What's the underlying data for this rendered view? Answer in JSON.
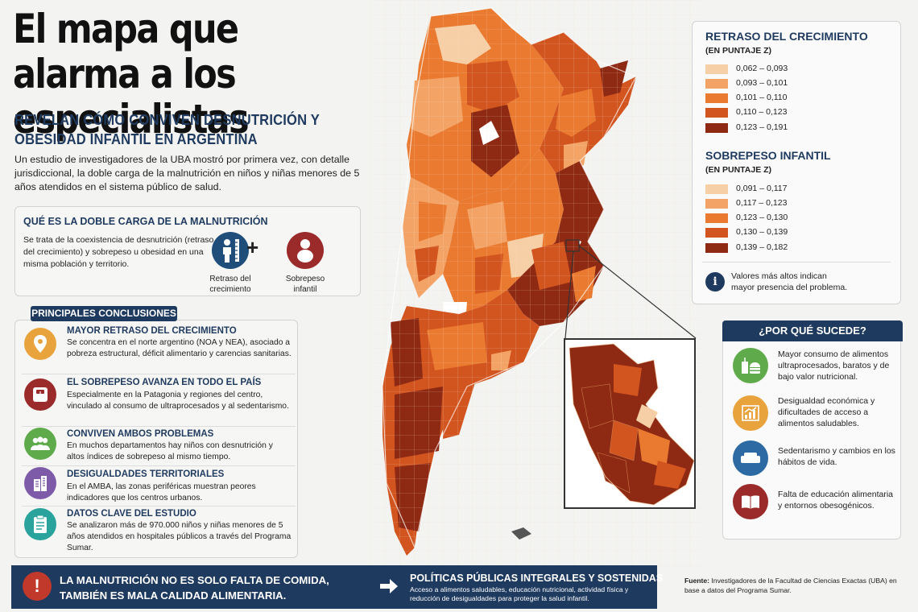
{
  "header": {
    "title": "El mapa que alarma a los especialistas",
    "subtitle": "REVELAN CÓMO CONVIVEN DESNUTRICIÓN Y OBESIDAD INFANTIL EN ARGENTINA",
    "intro": "Un estudio de investigadores de la UBA mostró por primera vez, con detalle jurisdiccional, la doble carga de la malnutrición en niños y niñas menores de 5 años atendidos en el sistema público de salud."
  },
  "doble_carga": {
    "heading": "QUÉ ES LA DOBLE CARGA DE LA MALNUTRICIÓN",
    "text": "Se trata de la coexistencia de desnutrición (retraso del crecimiento) y sobrepeso u obesidad en una misma población y territorio.",
    "icon1_label": "Retraso del crecimiento",
    "icon2_label": "Sobrepeso infantil",
    "plus": "+"
  },
  "conclusiones": {
    "heading": "PRINCIPALES CONCLUSIONES",
    "items": [
      {
        "title": "MAYOR RETRASO DEL CRECIMIENTO",
        "text": "Se concentra en el norte argentino (NOA y NEA), asociado a pobreza estructural, déficit alimentario y carencias sanitarias.",
        "icon": "location-pin-icon",
        "color": "#e8a33d"
      },
      {
        "title": "EL SOBREPESO AVANZA EN TODO EL PAÍS",
        "text": "Especialmente en la Patagonia y regiones del centro, vinculado al consumo de ultraprocesados y al sedentarismo.",
        "icon": "scale-icon",
        "color": "#9b2a2a"
      },
      {
        "title": "CONVIVEN AMBOS PROBLEMAS",
        "text": "En muchos departamentos hay niños con desnutrición y altos índices de sobrepeso al mismo tiempo.",
        "icon": "people-icon",
        "color": "#5faa4b"
      },
      {
        "title": "DESIGUALDADES TERRITORIALES",
        "text": "En el AMBA, las zonas periféricas muestran peores indicadores que los centros urbanos.",
        "icon": "buildings-icon",
        "color": "#7e5ba8"
      },
      {
        "title": "DATOS CLAVE DEL ESTUDIO",
        "text": "Se analizaron más de 970.000 niños y niñas menores de 5 años atendidos en hospitales públicos a través del Programa Sumar.",
        "icon": "clipboard-icon",
        "color": "#2aa39c"
      }
    ]
  },
  "legend": {
    "retraso": {
      "title": "RETRASO DEL CRECIMIENTO",
      "sub": "(EN PUNTAJE Z)",
      "ranges": [
        "0,062 – 0,093",
        "0,093 – 0,101",
        "0,101 – 0,110",
        "0,110 – 0,123",
        "0,123 – 0,191"
      ],
      "colors": [
        "#f6cfa6",
        "#f3a366",
        "#ea7a30",
        "#d2541f",
        "#8e2a14"
      ]
    },
    "sobrepeso": {
      "title": "SOBREPESO INFANTIL",
      "sub": "(EN PUNTAJE Z)",
      "ranges": [
        "0,091 – 0,117",
        "0,117 – 0,123",
        "0,123 – 0,130",
        "0,130 – 0,139",
        "0,139 – 0,182"
      ],
      "colors": [
        "#f6cfa6",
        "#f3a366",
        "#ea7a30",
        "#d2541f",
        "#8e2a14"
      ]
    },
    "note": "Valores más altos indican mayor presencia del problema.",
    "info": "i"
  },
  "por_que": {
    "heading": "¿POR QUÉ SUCEDE?",
    "items": [
      {
        "text": "Mayor consumo de alimentos ultraprocesados, baratos y de bajo valor nutricional.",
        "icon": "fast-food-icon",
        "color": "#5faa4b"
      },
      {
        "text": "Desigualdad económica y dificultades de acceso a alimentos saludables.",
        "icon": "chart-up-icon",
        "color": "#e8a33d"
      },
      {
        "text": "Sedentarismo y cambios en los hábitos de vida.",
        "icon": "sofa-icon",
        "color": "#2d6aa3"
      },
      {
        "text": "Falta de educación alimentaria y entornos obesogénicos.",
        "icon": "book-icon",
        "color": "#9b2a2a"
      }
    ]
  },
  "banner": {
    "warn": "!",
    "main": "LA MALNUTRICIÓN NO ES SOLO FALTA DE COMIDA, TAMBIÉN ES MALA CALIDAD ALIMENTARIA.",
    "policy_title": "POLÍTICAS PÚBLICAS INTEGRALES Y SOSTENIDAS",
    "policy_text": "Acceso a alimentos saludables, educación nutricional, actividad física y reducción de desigualdades para proteger la salud infantil."
  },
  "fuente": {
    "label": "Fuente:",
    "text": "Investigadores de la Facultad de Ciencias Exactas (UBA) en base a datos del Programa Sumar."
  }
}
